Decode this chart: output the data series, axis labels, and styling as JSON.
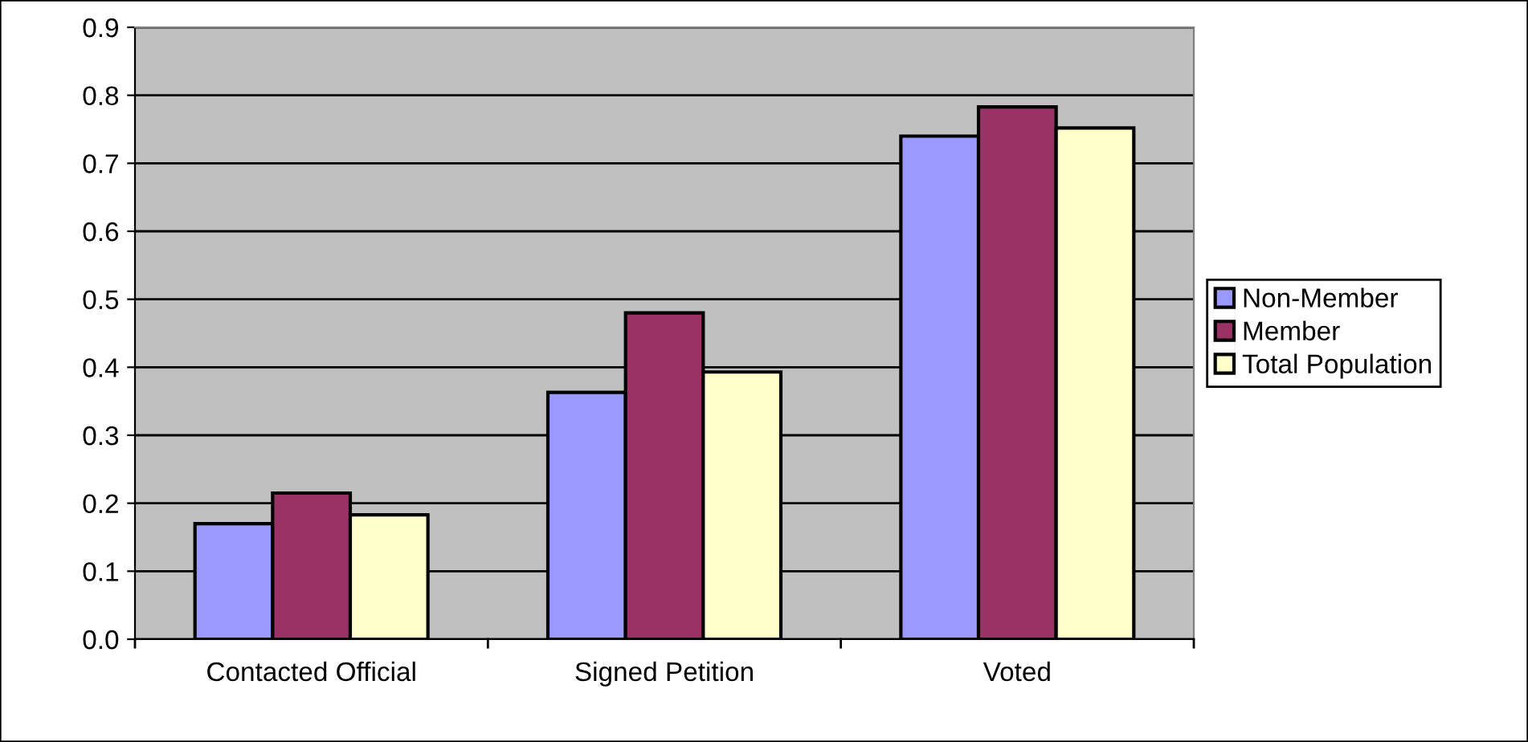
{
  "chart_data": {
    "type": "bar",
    "categories": [
      "Contacted Official",
      "Signed Petition",
      "Voted"
    ],
    "series": [
      {
        "name": "Non-Member",
        "color": "#9999ff",
        "values": [
          0.17,
          0.363,
          0.74
        ]
      },
      {
        "name": "Member",
        "color": "#993366",
        "values": [
          0.215,
          0.48,
          0.783
        ]
      },
      {
        "name": "Total Population",
        "color": "#ffffcc",
        "values": [
          0.183,
          0.393,
          0.752
        ]
      }
    ],
    "ylim": [
      0,
      0.9
    ],
    "yticks": [
      {
        "value": 0,
        "label": "0.0"
      },
      0.1,
      0.2,
      0.3,
      0.4,
      0.5,
      0.6,
      0.7,
      0.8,
      0.9
    ],
    "grid": "y",
    "legend": "right"
  }
}
